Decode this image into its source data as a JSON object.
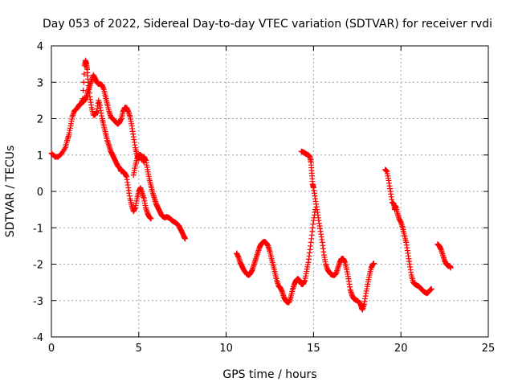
{
  "chart_data": {
    "type": "scatter",
    "title": "Day 053 of 2022, Sidereal Day-to-day VTEC variation (SDTVAR) for receiver rvdi",
    "xlabel": "GPS time / hours",
    "ylabel": "SDTVAR / TECUs",
    "xlim": [
      0,
      25
    ],
    "ylim": [
      -4,
      4
    ],
    "xticks": [
      0,
      5,
      10,
      15,
      20,
      25
    ],
    "yticks": [
      -4,
      -3,
      -2,
      -1,
      0,
      1,
      2,
      3,
      4
    ],
    "grid": true,
    "marker": "+",
    "color": "#ff0000",
    "series": [
      {
        "name": "rvdi",
        "segments": [
          [
            [
              0.0,
              1.05
            ],
            [
              0.2,
              0.95
            ],
            [
              0.4,
              0.95
            ],
            [
              0.6,
              1.05
            ],
            [
              0.8,
              1.2
            ],
            [
              0.9,
              1.4
            ],
            [
              1.0,
              1.55
            ],
            [
              1.1,
              1.8
            ],
            [
              1.2,
              2.05
            ],
            [
              1.3,
              2.2
            ],
            [
              1.4,
              2.25
            ],
            [
              1.5,
              2.3
            ],
            [
              1.6,
              2.38
            ],
            [
              1.7,
              2.42
            ],
            [
              1.8,
              2.45
            ],
            [
              1.9,
              2.5
            ],
            [
              2.0,
              2.6
            ],
            [
              2.1,
              2.75
            ],
            [
              2.2,
              2.9
            ],
            [
              2.3,
              3.05
            ],
            [
              2.4,
              3.2
            ],
            [
              2.5,
              3.1
            ],
            [
              2.6,
              3.0
            ],
            [
              2.7,
              2.95
            ],
            [
              2.8,
              2.95
            ],
            [
              2.9,
              2.92
            ],
            [
              3.0,
              2.8
            ],
            [
              3.1,
              2.6
            ],
            [
              3.2,
              2.4
            ],
            [
              3.3,
              2.2
            ],
            [
              3.4,
              2.05
            ],
            [
              3.5,
              2.0
            ],
            [
              3.6,
              1.95
            ],
            [
              3.7,
              1.9
            ],
            [
              3.8,
              1.85
            ],
            [
              3.9,
              1.9
            ],
            [
              4.0,
              2.0
            ],
            [
              4.1,
              2.2
            ],
            [
              4.2,
              2.3
            ],
            [
              4.3,
              2.3
            ],
            [
              4.4,
              2.2
            ],
            [
              4.5,
              2.05
            ],
            [
              4.6,
              1.8
            ],
            [
              4.7,
              1.5
            ],
            [
              4.8,
              1.2
            ],
            [
              4.9,
              1.0
            ],
            [
              5.0,
              0.9
            ],
            [
              5.1,
              0.95
            ],
            [
              5.2,
              0.9
            ],
            [
              5.3,
              0.8
            ]
          ],
          [
            [
              1.7,
              2.4
            ],
            [
              1.8,
              2.55
            ],
            [
              1.9,
              3.45
            ],
            [
              1.95,
              3.6
            ],
            [
              2.0,
              3.5
            ],
            [
              2.05,
              3.35
            ],
            [
              2.1,
              3.0
            ],
            [
              2.2,
              2.6
            ],
            [
              2.3,
              2.3
            ],
            [
              2.4,
              2.1
            ],
            [
              2.5,
              2.1
            ],
            [
              2.6,
              2.2
            ],
            [
              2.7,
              2.5
            ],
            [
              2.8,
              2.3
            ],
            [
              2.9,
              2.0
            ],
            [
              3.0,
              1.8
            ],
            [
              3.1,
              1.6
            ],
            [
              3.2,
              1.4
            ],
            [
              3.3,
              1.25
            ],
            [
              3.4,
              1.1
            ],
            [
              3.5,
              1.0
            ],
            [
              3.6,
              0.9
            ],
            [
              3.7,
              0.8
            ],
            [
              3.8,
              0.7
            ],
            [
              3.9,
              0.65
            ],
            [
              4.0,
              0.55
            ],
            [
              4.1,
              0.55
            ],
            [
              4.2,
              0.5
            ],
            [
              4.3,
              0.4
            ],
            [
              4.4,
              0.1
            ],
            [
              4.5,
              -0.2
            ],
            [
              4.6,
              -0.4
            ],
            [
              4.7,
              -0.55
            ],
            [
              4.8,
              -0.45
            ],
            [
              4.9,
              -0.2
            ],
            [
              5.0,
              0.0
            ],
            [
              5.1,
              0.1
            ],
            [
              5.2,
              -0.05
            ],
            [
              5.3,
              -0.2
            ],
            [
              5.4,
              -0.45
            ],
            [
              5.5,
              -0.6
            ],
            [
              5.6,
              -0.7
            ],
            [
              5.7,
              -0.75
            ]
          ],
          [
            [
              4.7,
              0.45
            ],
            [
              4.8,
              0.7
            ],
            [
              4.9,
              0.9
            ],
            [
              5.0,
              1.0
            ],
            [
              5.1,
              1.0
            ],
            [
              5.2,
              0.95
            ],
            [
              5.3,
              0.95
            ],
            [
              5.4,
              0.85
            ],
            [
              5.5,
              0.6
            ],
            [
              5.6,
              0.35
            ],
            [
              5.7,
              0.15
            ],
            [
              5.8,
              -0.05
            ],
            [
              5.9,
              -0.2
            ],
            [
              6.0,
              -0.35
            ],
            [
              6.1,
              -0.45
            ],
            [
              6.2,
              -0.55
            ],
            [
              6.3,
              -0.65
            ],
            [
              6.4,
              -0.7
            ],
            [
              6.5,
              -0.72
            ],
            [
              6.6,
              -0.7
            ],
            [
              6.7,
              -0.72
            ],
            [
              6.8,
              -0.75
            ],
            [
              6.9,
              -0.8
            ],
            [
              7.0,
              -0.83
            ],
            [
              7.1,
              -0.86
            ],
            [
              7.2,
              -0.9
            ],
            [
              7.3,
              -0.95
            ],
            [
              7.4,
              -1.05
            ],
            [
              7.5,
              -1.15
            ],
            [
              7.6,
              -1.25
            ],
            [
              7.65,
              -1.3
            ]
          ],
          [
            [
              10.6,
              -1.7
            ],
            [
              10.7,
              -1.8
            ],
            [
              10.8,
              -1.95
            ],
            [
              10.9,
              -2.05
            ],
            [
              11.0,
              -2.15
            ],
            [
              11.1,
              -2.22
            ],
            [
              11.2,
              -2.28
            ],
            [
              11.3,
              -2.3
            ],
            [
              11.4,
              -2.25
            ],
            [
              11.5,
              -2.15
            ],
            [
              11.6,
              -2.0
            ],
            [
              11.7,
              -1.85
            ],
            [
              11.8,
              -1.7
            ],
            [
              11.9,
              -1.55
            ],
            [
              12.0,
              -1.45
            ],
            [
              12.1,
              -1.4
            ],
            [
              12.2,
              -1.38
            ],
            [
              12.3,
              -1.42
            ],
            [
              12.4,
              -1.5
            ],
            [
              12.5,
              -1.65
            ],
            [
              12.6,
              -1.85
            ],
            [
              12.7,
              -2.05
            ],
            [
              12.8,
              -2.25
            ],
            [
              12.9,
              -2.45
            ],
            [
              13.0,
              -2.6
            ],
            [
              13.1,
              -2.65
            ],
            [
              13.2,
              -2.75
            ],
            [
              13.3,
              -2.9
            ],
            [
              13.4,
              -3.0
            ],
            [
              13.5,
              -3.05
            ],
            [
              13.6,
              -3.05
            ],
            [
              13.7,
              -2.9
            ],
            [
              13.8,
              -2.7
            ],
            [
              13.9,
              -2.55
            ],
            [
              14.0,
              -2.45
            ],
            [
              14.1,
              -2.4
            ],
            [
              14.2,
              -2.45
            ],
            [
              14.3,
              -2.55
            ],
            [
              14.4,
              -2.55
            ],
            [
              14.5,
              -2.45
            ],
            [
              14.6,
              -2.2
            ],
            [
              14.7,
              -1.95
            ],
            [
              14.8,
              -1.6
            ],
            [
              14.9,
              -1.2
            ],
            [
              15.0,
              -0.8
            ],
            [
              15.1,
              -0.5
            ]
          ],
          [
            [
              14.3,
              1.1
            ],
            [
              14.4,
              1.08
            ],
            [
              14.5,
              1.05
            ],
            [
              14.6,
              1.02
            ],
            [
              14.7,
              1.0
            ],
            [
              14.8,
              0.95
            ],
            [
              14.85,
              0.8
            ],
            [
              14.9,
              0.5
            ],
            [
              14.95,
              0.2
            ],
            [
              15.0,
              0.1
            ],
            [
              15.1,
              -0.2
            ],
            [
              15.2,
              -0.5
            ],
            [
              15.3,
              -0.8
            ],
            [
              15.4,
              -1.1
            ],
            [
              15.5,
              -1.4
            ],
            [
              15.6,
              -1.75
            ],
            [
              15.7,
              -2.0
            ],
            [
              15.8,
              -2.15
            ],
            [
              15.9,
              -2.22
            ],
            [
              16.0,
              -2.28
            ],
            [
              16.1,
              -2.3
            ],
            [
              16.2,
              -2.3
            ],
            [
              16.3,
              -2.25
            ],
            [
              16.4,
              -2.1
            ],
            [
              16.5,
              -1.95
            ],
            [
              16.6,
              -1.85
            ],
            [
              16.7,
              -1.85
            ],
            [
              16.8,
              -1.95
            ],
            [
              16.9,
              -2.15
            ],
            [
              17.0,
              -2.4
            ],
            [
              17.1,
              -2.7
            ],
            [
              17.2,
              -2.85
            ],
            [
              17.3,
              -2.95
            ],
            [
              17.4,
              -2.98
            ],
            [
              17.5,
              -3.0
            ],
            [
              17.6,
              -3.05
            ],
            [
              17.7,
              -3.1
            ],
            [
              17.75,
              -3.2
            ],
            [
              17.8,
              -3.25
            ],
            [
              17.9,
              -3.1
            ],
            [
              18.0,
              -2.8
            ],
            [
              18.1,
              -2.55
            ],
            [
              18.2,
              -2.3
            ],
            [
              18.3,
              -2.1
            ],
            [
              18.4,
              -2.0
            ],
            [
              18.45,
              -1.98
            ]
          ],
          [
            [
              19.1,
              0.6
            ],
            [
              19.2,
              0.55
            ],
            [
              19.3,
              0.3
            ],
            [
              19.4,
              0.0
            ],
            [
              19.5,
              -0.3
            ],
            [
              19.6,
              -0.35
            ],
            [
              19.65,
              -0.5
            ],
            [
              19.7,
              -0.4
            ],
            [
              19.8,
              -0.6
            ],
            [
              19.9,
              -0.75
            ],
            [
              20.0,
              -0.85
            ],
            [
              20.1,
              -1.0
            ],
            [
              20.2,
              -1.2
            ],
            [
              20.3,
              -1.4
            ],
            [
              20.4,
              -1.7
            ],
            [
              20.5,
              -2.0
            ],
            [
              20.6,
              -2.3
            ],
            [
              20.7,
              -2.5
            ],
            [
              20.8,
              -2.55
            ],
            [
              20.9,
              -2.58
            ],
            [
              21.0,
              -2.6
            ],
            [
              21.1,
              -2.65
            ],
            [
              21.2,
              -2.7
            ],
            [
              21.3,
              -2.75
            ],
            [
              21.4,
              -2.78
            ],
            [
              21.5,
              -2.8
            ],
            [
              21.6,
              -2.75
            ],
            [
              21.7,
              -2.7
            ],
            [
              21.75,
              -2.68
            ]
          ],
          [
            [
              22.1,
              -1.45
            ],
            [
              22.2,
              -1.5
            ],
            [
              22.3,
              -1.6
            ],
            [
              22.4,
              -1.75
            ],
            [
              22.5,
              -1.9
            ],
            [
              22.6,
              -2.0
            ],
            [
              22.7,
              -2.05
            ],
            [
              22.8,
              -2.05
            ],
            [
              22.85,
              -2.1
            ]
          ]
        ]
      }
    ]
  }
}
